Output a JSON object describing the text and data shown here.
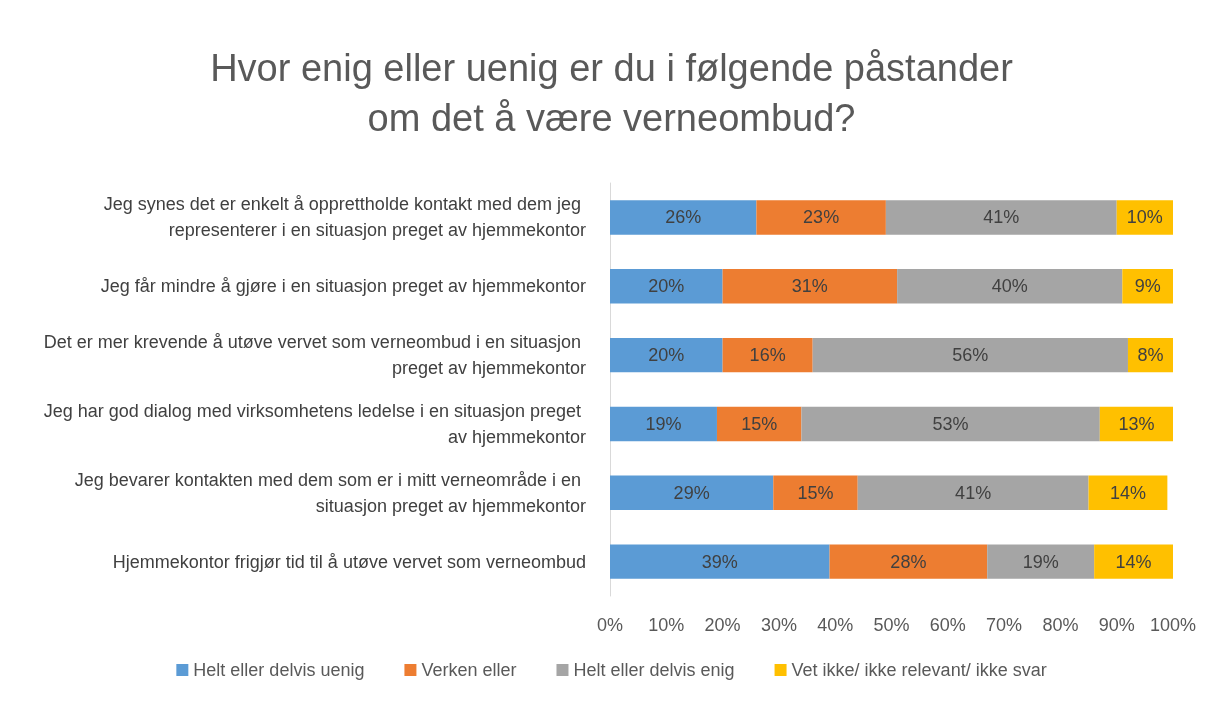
{
  "chart_data": {
    "type": "bar",
    "orientation": "horizontal",
    "stacked": true,
    "title": "Hvor enig eller uenig er du i følgende påstander\nom det å være verneombud?",
    "categories": [
      "Jeg synes det er enkelt å opprettholde kontakt med dem jeg representerer i en situasjon preget av hjemmekontor",
      "Jeg får mindre å gjøre i en situasjon preget av hjemmekontor",
      "Det er mer krevende å utøve vervet som verneombud i en situasjon preget av hjemmekontor",
      "Jeg har god dialog med virksomhetens ledelse i en situasjon preget av hjemmekontor",
      "Jeg bevarer kontakten med dem som er i mitt verneområde i en situasjon preget av hjemmekontor",
      "Hjemmekontor frigjør tid til å utøve vervet som verneombud"
    ],
    "series": [
      {
        "name": "Helt eller delvis uenig",
        "color": "#5b9bd5",
        "values": [
          26,
          20,
          20,
          19,
          29,
          39
        ],
        "value_labels": [
          "26%",
          "20%",
          "20%",
          "19%",
          "29%",
          "39%"
        ]
      },
      {
        "name": "Verken eller",
        "color": "#ed7d31",
        "values": [
          23,
          31,
          16,
          15,
          15,
          28
        ],
        "value_labels": [
          "23%",
          "31%",
          "16%",
          "15%",
          "15%",
          "28%"
        ]
      },
      {
        "name": "Helt eller delvis enig",
        "color": "#a5a5a5",
        "values": [
          41,
          40,
          56,
          53,
          41,
          19
        ],
        "value_labels": [
          "41%",
          "40%",
          "56%",
          "53%",
          "41%",
          "19%"
        ]
      },
      {
        "name": "Vet ikke/ ikke relevant/ ikke svar",
        "color": "#ffc000",
        "values": [
          10,
          9,
          8,
          13,
          14,
          14
        ],
        "value_labels": [
          "10%",
          "9%",
          "8%",
          "13%",
          "14%",
          "14%"
        ]
      }
    ],
    "xlim": [
      0,
      100
    ],
    "xticks": [
      {
        "value": 0,
        "label": "0%"
      },
      {
        "value": 10,
        "label": "10%"
      },
      {
        "value": 20,
        "label": "20%"
      },
      {
        "value": 30,
        "label": "30%"
      },
      {
        "value": 40,
        "label": "40%"
      },
      {
        "value": 50,
        "label": "50%"
      },
      {
        "value": 60,
        "label": "60%"
      },
      {
        "value": 70,
        "label": "70%"
      },
      {
        "value": 80,
        "label": "80%"
      },
      {
        "value": 90,
        "label": "90%"
      },
      {
        "value": 100,
        "label": "100%"
      }
    ],
    "grid": false,
    "legend": "bottom"
  }
}
